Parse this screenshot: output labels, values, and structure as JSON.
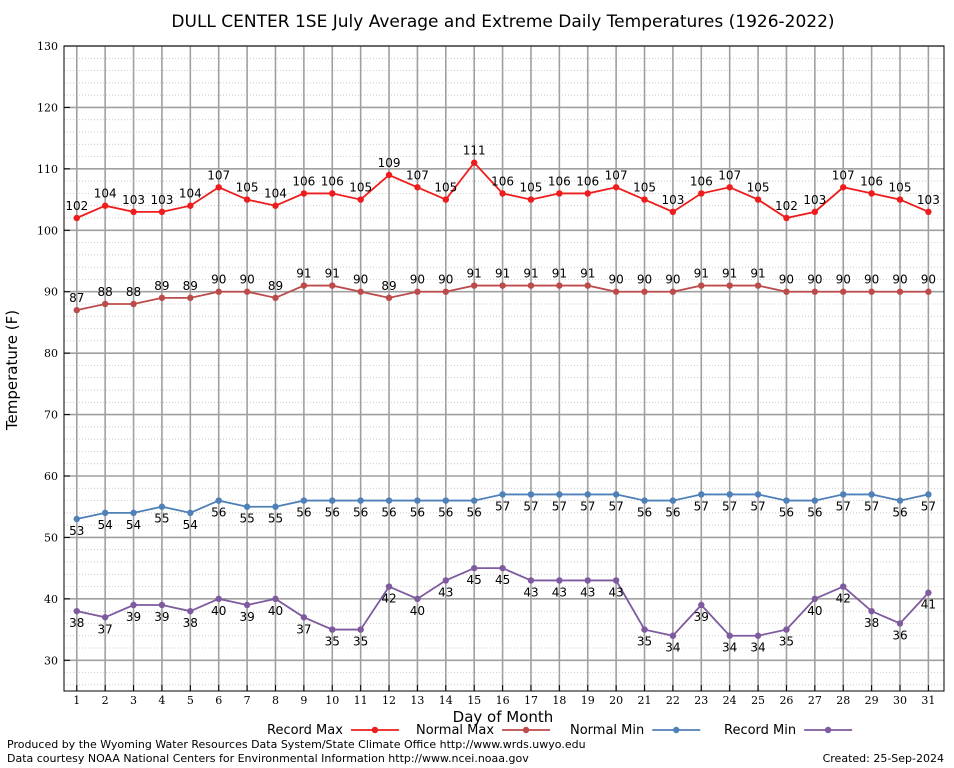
{
  "chart_data": {
    "type": "line",
    "title": "DULL CENTER 1SE July Average and Extreme Daily Temperatures (1926-2022)",
    "xlabel": "Day of Month",
    "ylabel": "Temperature (F)",
    "ylim": [
      25,
      130
    ],
    "yticks": [
      30,
      40,
      50,
      60,
      70,
      80,
      90,
      100,
      110,
      120,
      130
    ],
    "x": [
      1,
      2,
      3,
      4,
      5,
      6,
      7,
      8,
      9,
      10,
      11,
      12,
      13,
      14,
      15,
      16,
      17,
      18,
      19,
      20,
      21,
      22,
      23,
      24,
      25,
      26,
      27,
      28,
      29,
      30,
      31
    ],
    "grid": true,
    "legend_position": "bottom",
    "series": [
      {
        "name": "Record Max",
        "color": "#ee1c1c",
        "label_pos": "above",
        "values": [
          102,
          104,
          103,
          103,
          104,
          107,
          105,
          104,
          106,
          106,
          105,
          109,
          107,
          105,
          111,
          106,
          105,
          106,
          106,
          107,
          105,
          103,
          106,
          107,
          105,
          102,
          103,
          107,
          106,
          105,
          103
        ]
      },
      {
        "name": "Normal Max",
        "color": "#bc4c4c",
        "label_pos": "above",
        "values": [
          87,
          88,
          88,
          89,
          89,
          90,
          90,
          89,
          91,
          91,
          90,
          89,
          90,
          90,
          91,
          91,
          91,
          91,
          91,
          90,
          90,
          90,
          91,
          91,
          91,
          90,
          90,
          90,
          90,
          90,
          90
        ]
      },
      {
        "name": "Normal Min",
        "color": "#4f80b8",
        "label_pos": "below",
        "values": [
          53,
          54,
          54,
          55,
          54,
          56,
          55,
          55,
          56,
          56,
          56,
          56,
          56,
          56,
          56,
          57,
          57,
          57,
          57,
          57,
          56,
          56,
          57,
          57,
          57,
          56,
          56,
          57,
          57,
          56,
          57
        ]
      },
      {
        "name": "Record Min",
        "color": "#7e5a9e",
        "label_pos": "below",
        "values": [
          38,
          37,
          39,
          39,
          38,
          40,
          39,
          40,
          37,
          35,
          35,
          42,
          40,
          43,
          45,
          45,
          43,
          43,
          43,
          43,
          35,
          34,
          39,
          34,
          34,
          35,
          40,
          42,
          38,
          36,
          41
        ]
      }
    ]
  },
  "footer": {
    "produced_by": "Produced by the Wyoming Water Resources Data System/State Climate Office http://www.wrds.uwyo.edu",
    "courtesy": "Data courtesy NOAA National Centers for Environmental Information http://www.ncei.noaa.gov",
    "created": "Created:  25-Sep-2024"
  }
}
